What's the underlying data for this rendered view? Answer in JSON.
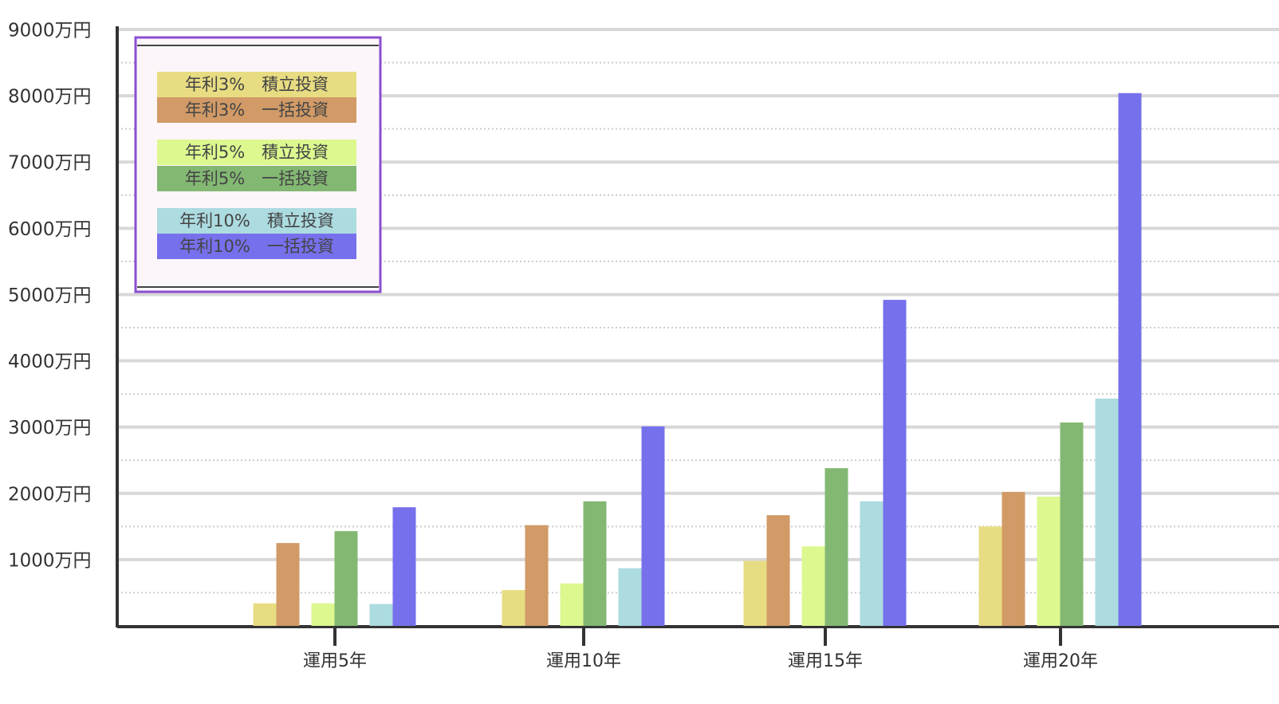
{
  "chart_data": {
    "type": "bar",
    "categories": [
      "運用5年",
      "運用10年",
      "運用15年",
      "運用20年"
    ],
    "series": [
      {
        "name": "年利3%　積立投資",
        "color": "#e8dc82",
        "values": [
          340,
          540,
          980,
          1500
        ]
      },
      {
        "name": "年利3%　一括投資",
        "color": "#d19a66",
        "values": [
          1250,
          1520,
          1670,
          2020
        ]
      },
      {
        "name": "年利5%　積立投資",
        "color": "#dcf88f",
        "values": [
          340,
          640,
          1200,
          1950
        ]
      },
      {
        "name": "年利5%　一括投資",
        "color": "#83b873",
        "values": [
          1430,
          1880,
          2380,
          3070
        ]
      },
      {
        "name": "年利10%　積立投資",
        "color": "#acdbe0",
        "values": [
          330,
          870,
          1880,
          3430
        ]
      },
      {
        "name": "年利10%　一括投資",
        "color": "#7670ec",
        "values": [
          1790,
          3010,
          4920,
          8040
        ]
      }
    ],
    "ylim": [
      0,
      9000
    ],
    "yticks": [
      {
        "value": 1000,
        "label": "1000万円"
      },
      {
        "value": 2000,
        "label": "2000万円"
      },
      {
        "value": 3000,
        "label": "3000万円"
      },
      {
        "value": 4000,
        "label": "4000万円"
      },
      {
        "value": 5000,
        "label": "5000万円"
      },
      {
        "value": 6000,
        "label": "6000万円"
      },
      {
        "value": 7000,
        "label": "7000万円"
      },
      {
        "value": 8000,
        "label": "8000万円"
      },
      {
        "value": 9000,
        "label": "9000万円"
      }
    ],
    "grid": true,
    "minor_grid": true,
    "legend": "upper left"
  }
}
